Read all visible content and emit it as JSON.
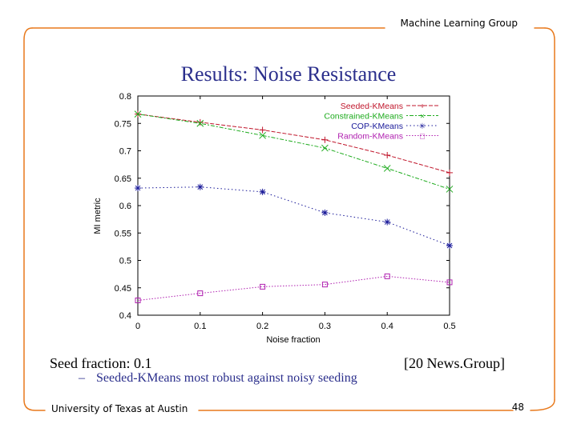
{
  "slide": {
    "header": "Machine Learning Group",
    "title": "Results: Noise Resistance",
    "seed_note": "Seed fraction: 0.1",
    "dataset_note": "[20 News.Group]",
    "bullet_dash": "–",
    "bullet_text": "Seeded-KMeans most robust against noisy seeding",
    "footer_left": "University of Texas at Austin",
    "page_number": "48",
    "frame_color": "#e8791c"
  },
  "chart_data": {
    "type": "line",
    "title": "",
    "xlabel": "Noise fraction",
    "ylabel": "MI metric",
    "x": [
      0,
      0.1,
      0.2,
      0.3,
      0.4,
      0.5
    ],
    "xticks": [
      "0",
      "0.1",
      "0.2",
      "0.3",
      "0.4",
      "0.5"
    ],
    "yticks": [
      "0.4",
      "0.45",
      "0.5",
      "0.55",
      "0.6",
      "0.65",
      "0.7",
      "0.75",
      "0.8"
    ],
    "xlim": [
      0,
      0.5
    ],
    "ylim": [
      0.4,
      0.8
    ],
    "legend_position": "top-right",
    "series": [
      {
        "name": "Seeded-KMeans",
        "values": [
          0.767,
          0.752,
          0.738,
          0.72,
          0.692,
          0.66
        ],
        "color": "#c0172c",
        "marker": "plus",
        "legend_glyph": "+"
      },
      {
        "name": "Constrained-KMeans",
        "values": [
          0.767,
          0.75,
          0.728,
          0.705,
          0.668,
          0.63
        ],
        "color": "#1dab1d",
        "marker": "x",
        "legend_glyph": "×"
      },
      {
        "name": "COP-KMeans",
        "values": [
          0.632,
          0.634,
          0.625,
          0.587,
          0.57,
          0.527
        ],
        "color": "#1a1a99",
        "marker": "star",
        "legend_glyph": "✳"
      },
      {
        "name": "Random-KMeans",
        "values": [
          0.427,
          0.44,
          0.452,
          0.456,
          0.471,
          0.46
        ],
        "color": "#b020b0",
        "marker": "square",
        "legend_glyph": "□"
      }
    ]
  }
}
